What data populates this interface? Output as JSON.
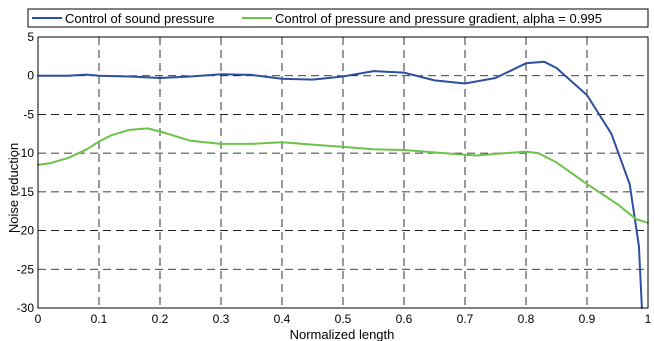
{
  "chart_data": {
    "type": "line",
    "xlabel": "Normalized length",
    "ylabel": "Noise reduction",
    "xlim": [
      0,
      1
    ],
    "ylim": [
      -30,
      5
    ],
    "xticks": [
      "0",
      "0.1",
      "0.2",
      "0.3",
      "0.4",
      "0.5",
      "0.6",
      "0.7",
      "0.8",
      "0.9",
      "1"
    ],
    "yticks": [
      "5",
      "0",
      "-5",
      "-10",
      "-15",
      "-20",
      "-25",
      "-30"
    ],
    "grid": "dashed",
    "legend_placement": "top",
    "series": [
      {
        "name": "Control of sound pressure",
        "color": "#2e4fa0",
        "x": [
          0,
          0.05,
          0.08,
          0.1,
          0.15,
          0.2,
          0.25,
          0.3,
          0.35,
          0.4,
          0.45,
          0.5,
          0.55,
          0.6,
          0.65,
          0.7,
          0.75,
          0.8,
          0.83,
          0.85,
          0.9,
          0.94,
          0.97,
          0.985,
          0.99
        ],
        "y": [
          0,
          0,
          0.15,
          0,
          -0.1,
          -0.3,
          -0.1,
          0.2,
          0.1,
          -0.4,
          -0.5,
          -0.1,
          0.6,
          0.4,
          -0.6,
          -1.0,
          -0.3,
          1.6,
          1.8,
          1.0,
          -2.5,
          -7.5,
          -14.0,
          -22.0,
          -30.0
        ]
      },
      {
        "name": "Control of pressure and pressure gradient, alpha = 0.995",
        "color": "#6cc24a",
        "x": [
          0,
          0.02,
          0.05,
          0.08,
          0.1,
          0.12,
          0.15,
          0.18,
          0.2,
          0.25,
          0.3,
          0.35,
          0.4,
          0.45,
          0.5,
          0.55,
          0.6,
          0.65,
          0.7,
          0.72,
          0.75,
          0.8,
          0.82,
          0.85,
          0.9,
          0.95,
          0.98,
          1.0
        ],
        "y": [
          -11.5,
          -11.3,
          -10.6,
          -9.5,
          -8.5,
          -7.7,
          -7.0,
          -6.8,
          -7.2,
          -8.4,
          -8.8,
          -8.8,
          -8.6,
          -8.9,
          -9.2,
          -9.5,
          -9.6,
          -9.9,
          -10.2,
          -10.3,
          -10.1,
          -9.8,
          -10.0,
          -11.2,
          -14.0,
          -16.6,
          -18.5,
          -19.0
        ]
      }
    ]
  }
}
